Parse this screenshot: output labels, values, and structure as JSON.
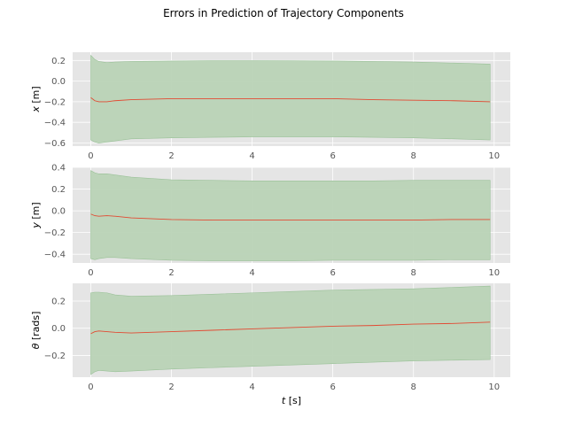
{
  "figure": {
    "title": "Errors in Prediction of Trajectory Components",
    "xlabel_var": "t",
    "xlabel_unit": " [s]"
  },
  "colors": {
    "panel_bg": "#e5e5e5",
    "grid": "#ffffff",
    "band": "#b9d3b6",
    "band_edge": "#9ac198",
    "line": "#e24a33",
    "tick_text": "#555555",
    "label_text": "#000000"
  },
  "chart_data": [
    {
      "type": "area",
      "ylabel_var": "x",
      "ylabel_unit": " [m]",
      "xlim": [
        -0.45,
        10.4
      ],
      "ylim": [
        -0.63,
        0.28
      ],
      "xticks": [
        0,
        2,
        4,
        6,
        8,
        10
      ],
      "yticks": [
        -0.6,
        -0.4,
        -0.2,
        0.0,
        0.2
      ],
      "ytick_labels": [
        "−0.6",
        "−0.4",
        "−0.2",
        "0.0",
        "0.2"
      ],
      "grid": true,
      "x": [
        0,
        0.1,
        0.2,
        0.4,
        0.6,
        1.0,
        2.0,
        3.0,
        4.0,
        5.0,
        6.0,
        7.0,
        8.0,
        9.0,
        9.9
      ],
      "mean": [
        -0.16,
        -0.19,
        -0.2,
        -0.2,
        -0.19,
        -0.18,
        -0.17,
        -0.17,
        -0.17,
        -0.17,
        -0.17,
        -0.18,
        -0.185,
        -0.19,
        -0.2
      ],
      "upper": [
        0.25,
        0.21,
        0.19,
        0.18,
        0.185,
        0.19,
        0.195,
        0.198,
        0.198,
        0.197,
        0.195,
        0.19,
        0.185,
        0.175,
        0.165
      ],
      "lower": [
        -0.57,
        -0.59,
        -0.6,
        -0.59,
        -0.58,
        -0.56,
        -0.55,
        -0.545,
        -0.54,
        -0.54,
        -0.54,
        -0.545,
        -0.55,
        -0.56,
        -0.57
      ]
    },
    {
      "type": "area",
      "ylabel_var": "y",
      "ylabel_unit": " [m]",
      "xlim": [
        -0.45,
        10.4
      ],
      "ylim": [
        -0.48,
        0.4
      ],
      "xticks": [
        0,
        2,
        4,
        6,
        8,
        10
      ],
      "yticks": [
        -0.4,
        -0.2,
        0.0,
        0.2,
        0.4
      ],
      "ytick_labels": [
        "−0.4",
        "−0.2",
        "0.0",
        "0.2",
        "0.4"
      ],
      "grid": true,
      "x": [
        0,
        0.1,
        0.2,
        0.4,
        0.6,
        1.0,
        2.0,
        3.0,
        4.0,
        5.0,
        6.0,
        7.0,
        8.0,
        9.0,
        9.9
      ],
      "mean": [
        -0.03,
        -0.045,
        -0.05,
        -0.045,
        -0.05,
        -0.065,
        -0.08,
        -0.085,
        -0.085,
        -0.085,
        -0.085,
        -0.085,
        -0.085,
        -0.08,
        -0.08
      ],
      "upper": [
        0.37,
        0.35,
        0.34,
        0.34,
        0.33,
        0.31,
        0.285,
        0.28,
        0.275,
        0.275,
        0.275,
        0.275,
        0.28,
        0.28,
        0.28
      ],
      "lower": [
        -0.44,
        -0.45,
        -0.44,
        -0.43,
        -0.43,
        -0.44,
        -0.455,
        -0.46,
        -0.46,
        -0.46,
        -0.455,
        -0.455,
        -0.455,
        -0.45,
        -0.45
      ]
    },
    {
      "type": "area",
      "ylabel_var": "θ",
      "ylabel_unit": " [rads]",
      "xlim": [
        -0.45,
        10.4
      ],
      "ylim": [
        -0.36,
        0.33
      ],
      "xticks": [
        0,
        2,
        4,
        6,
        8,
        10
      ],
      "yticks": [
        -0.2,
        0.0,
        0.2
      ],
      "ytick_labels": [
        "−0.2",
        "0.0",
        "0.2"
      ],
      "grid": true,
      "x": [
        0,
        0.1,
        0.2,
        0.4,
        0.6,
        1.0,
        2.0,
        3.0,
        4.0,
        5.0,
        6.0,
        7.0,
        8.0,
        9.0,
        9.9
      ],
      "mean": [
        -0.04,
        -0.025,
        -0.02,
        -0.025,
        -0.03,
        -0.035,
        -0.025,
        -0.015,
        -0.005,
        0.005,
        0.015,
        0.02,
        0.03,
        0.035,
        0.045
      ],
      "upper": [
        0.26,
        0.265,
        0.265,
        0.26,
        0.245,
        0.235,
        0.24,
        0.25,
        0.26,
        0.27,
        0.28,
        0.285,
        0.29,
        0.3,
        0.31
      ],
      "lower": [
        -0.34,
        -0.32,
        -0.31,
        -0.315,
        -0.32,
        -0.315,
        -0.3,
        -0.29,
        -0.28,
        -0.27,
        -0.26,
        -0.25,
        -0.24,
        -0.235,
        -0.23
      ]
    }
  ]
}
